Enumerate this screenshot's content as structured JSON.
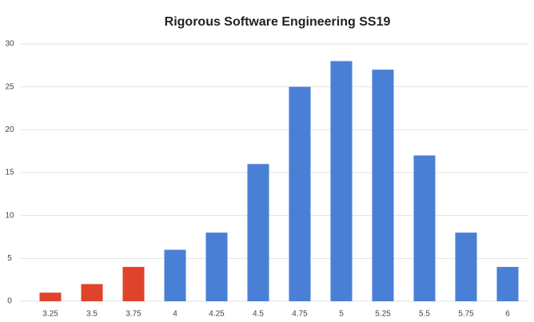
{
  "chart_data": {
    "type": "bar",
    "title": "Rigorous Software Engineering SS19",
    "categories": [
      "3.25",
      "3.5",
      "3.75",
      "4",
      "4.25",
      "4.5",
      "4.75",
      "5",
      "5.25",
      "5.5",
      "5.75",
      "6"
    ],
    "values": [
      1,
      2,
      4,
      6,
      8,
      16,
      25,
      28,
      27,
      17,
      8,
      4
    ],
    "colors": [
      "#e0432b",
      "#e0432b",
      "#e0432b",
      "#4a7fd6",
      "#4a7fd6",
      "#4a7fd6",
      "#4a7fd6",
      "#4a7fd6",
      "#4a7fd6",
      "#4a7fd6",
      "#4a7fd6",
      "#4a7fd6"
    ],
    "ylim": [
      0,
      30
    ],
    "yticks": [
      0,
      5,
      10,
      15,
      20,
      25,
      30
    ],
    "grid": true
  }
}
